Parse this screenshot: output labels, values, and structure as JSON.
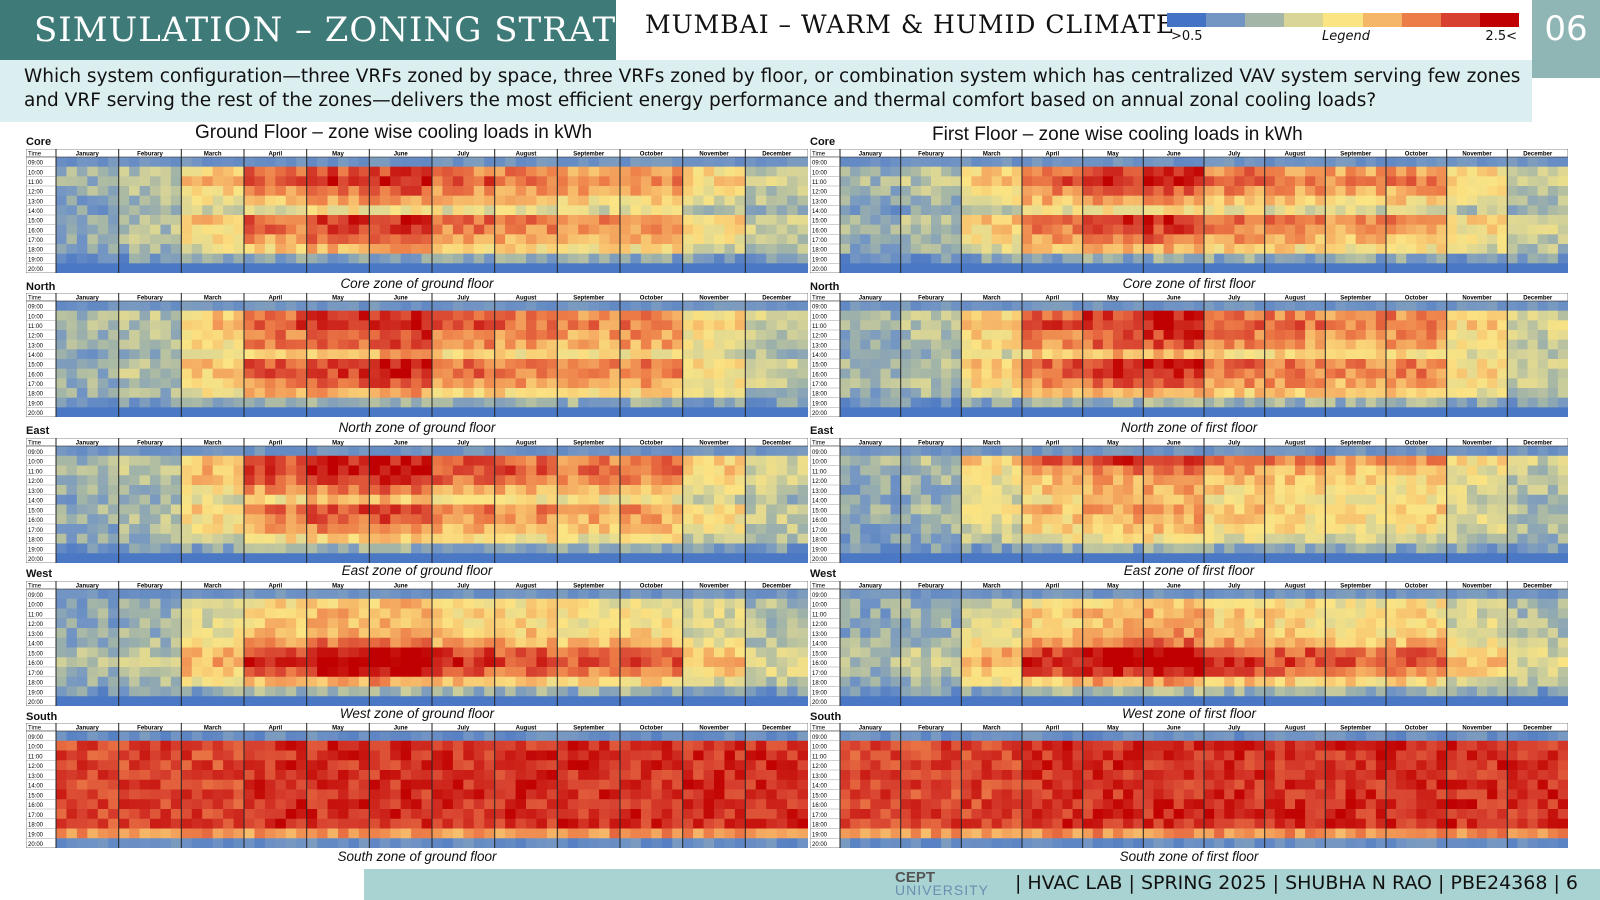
{
  "header": {
    "title": "SIMULATION – ZONING STRATEGY",
    "subtitle": "MUMBAI – WARM & HUMID CLIMATE",
    "page_badge": "06"
  },
  "legend": {
    "min_label": ">0.5",
    "title": "Legend",
    "max_label": "2.5<",
    "colors": [
      "#4472c4",
      "#7295c4",
      "#a3b5a7",
      "#d9d596",
      "#fbe483",
      "#f6b667",
      "#ed7d48",
      "#d7402f",
      "#c00000"
    ]
  },
  "question": "Which system configuration—three VRFs zoned by space, three VRFs zoned by floor, or combination system which has centralized VAV system serving few zones and VRF serving the rest of the zones—delivers the most efficient energy performance and thermal comfort based on annual zonal cooling loads?",
  "floors": [
    {
      "title": "Ground Floor – zone wise cooling loads in kWh",
      "zones": [
        {
          "label": "Core",
          "caption": "Core zone of ground floor",
          "profile": "core"
        },
        {
          "label": "North",
          "caption": "North zone of ground floor",
          "profile": "north"
        },
        {
          "label": "East",
          "caption": "East zone of ground floor",
          "profile": "east"
        },
        {
          "label": "West",
          "caption": "West zone of ground floor",
          "profile": "west"
        },
        {
          "label": "South",
          "caption": "South zone of ground floor",
          "profile": "south"
        }
      ]
    },
    {
      "title": "First Floor – zone wise cooling loads in kWh",
      "zones": [
        {
          "label": "Core",
          "caption": "Core zone of first floor",
          "profile": "core"
        },
        {
          "label": "North",
          "caption": "North zone of first floor",
          "profile": "north"
        },
        {
          "label": "East",
          "caption": "East zone of first floor",
          "profile": "east1"
        },
        {
          "label": "West",
          "caption": "West zone of first floor",
          "profile": "west"
        },
        {
          "label": "South",
          "caption": "South zone of first floor",
          "profile": "south"
        }
      ]
    }
  ],
  "heatmap": {
    "time_header": "Time",
    "months": [
      "January",
      "Feburary",
      "March",
      "April",
      "May",
      "June",
      "July",
      "August",
      "September",
      "October",
      "November",
      "December"
    ],
    "hours": [
      "09:00",
      "10:00",
      "11:00",
      "12:00",
      "13:00",
      "14:00",
      "15:00",
      "16:00",
      "17:00",
      "18:00",
      "19:00",
      "20:00"
    ]
  },
  "footer": {
    "logo_line1": "CEPT",
    "logo_line2": "UNIVERSITY",
    "text": "| HVAC LAB | SPRING 2025 | SHUBHA N RAO | PBE24368 |    6"
  }
}
